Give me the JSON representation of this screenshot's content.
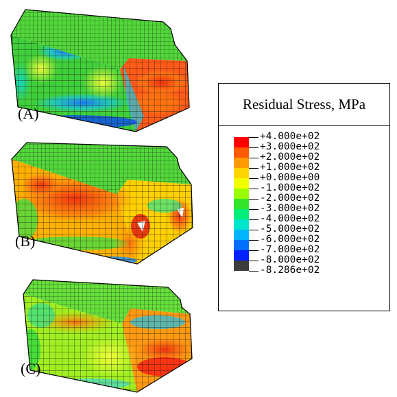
{
  "legend": {
    "title": "Residual Stress, MPa",
    "colors": [
      "#ff0000",
      "#ff5a00",
      "#ff9a00",
      "#ffd400",
      "#f2ff00",
      "#99ff00",
      "#33e62a",
      "#00ee77",
      "#00e6cc",
      "#00b4ff",
      "#0070ff",
      "#0022ff",
      "#3c3c3c"
    ],
    "labels": [
      "+4.000e+02",
      "+3.000e+02",
      "+2.000e+02",
      "+1.000e+02",
      "+0.000e+00",
      "-1.000e+02",
      "-2.000e+02",
      "-3.000e+02",
      "-4.000e+02",
      "-5.000e+02",
      "-6.000e+02",
      "-7.000e+02",
      "-8.000e+02",
      "-8.286e+02"
    ]
  },
  "panels": [
    {
      "label": "(A)",
      "body_color": "#3fcf3a",
      "end_color": "#ff5a18"
    },
    {
      "label": "(B)",
      "body_color": "#ff7a10",
      "end_color": "#ffb000"
    },
    {
      "label": "(C)",
      "body_color": "#a0ef20",
      "end_color": "#ff3a10"
    }
  ]
}
